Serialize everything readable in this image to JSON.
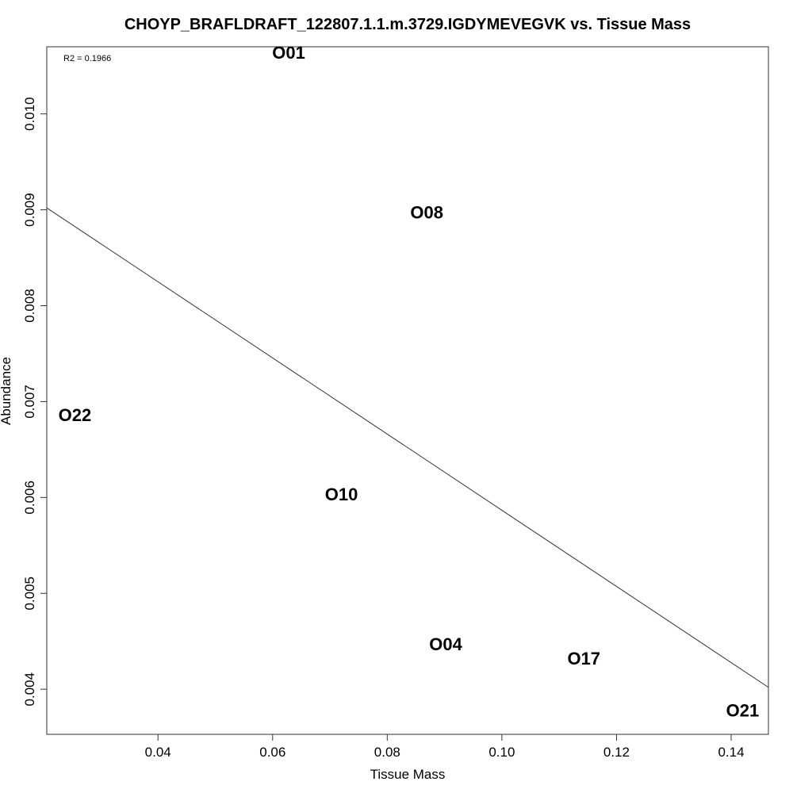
{
  "chart_data": {
    "type": "scatter",
    "title": "CHOYP_BRAFLDRAFT_122807.1.1.m.3729.IGDYMEVEGVK vs. Tissue Mass",
    "xlabel": "Tissue Mass",
    "ylabel": "Abundance",
    "xlim": [
      0.0206,
      0.1465
    ],
    "ylim": [
      0.00353,
      0.0107
    ],
    "x_ticks": [
      0.04,
      0.06,
      0.08,
      0.1,
      0.12,
      0.14
    ],
    "x_tick_labels": [
      "0.04",
      "0.06",
      "0.08",
      "0.10",
      "0.12",
      "0.14"
    ],
    "y_ticks": [
      0.004,
      0.005,
      0.006,
      0.007,
      0.008,
      0.009,
      0.01
    ],
    "y_tick_labels": [
      "0.004",
      "0.005",
      "0.006",
      "0.007",
      "0.008",
      "0.009",
      "0.010"
    ],
    "grid": false,
    "annotation": "R2 = 0.1966",
    "points": [
      {
        "label": "O01",
        "x": 0.0628,
        "y": 0.01064
      },
      {
        "label": "O08",
        "x": 0.0869,
        "y": 0.00897
      },
      {
        "label": "O22",
        "x": 0.0255,
        "y": 0.00686
      },
      {
        "label": "O10",
        "x": 0.072,
        "y": 0.00603
      },
      {
        "label": "O04",
        "x": 0.0902,
        "y": 0.00447
      },
      {
        "label": "O17",
        "x": 0.1143,
        "y": 0.00432
      },
      {
        "label": "O21",
        "x": 0.142,
        "y": 0.00378
      }
    ],
    "fit_line": {
      "x": [
        0.0206,
        0.1465
      ],
      "y": [
        0.00902,
        0.00402
      ]
    }
  }
}
